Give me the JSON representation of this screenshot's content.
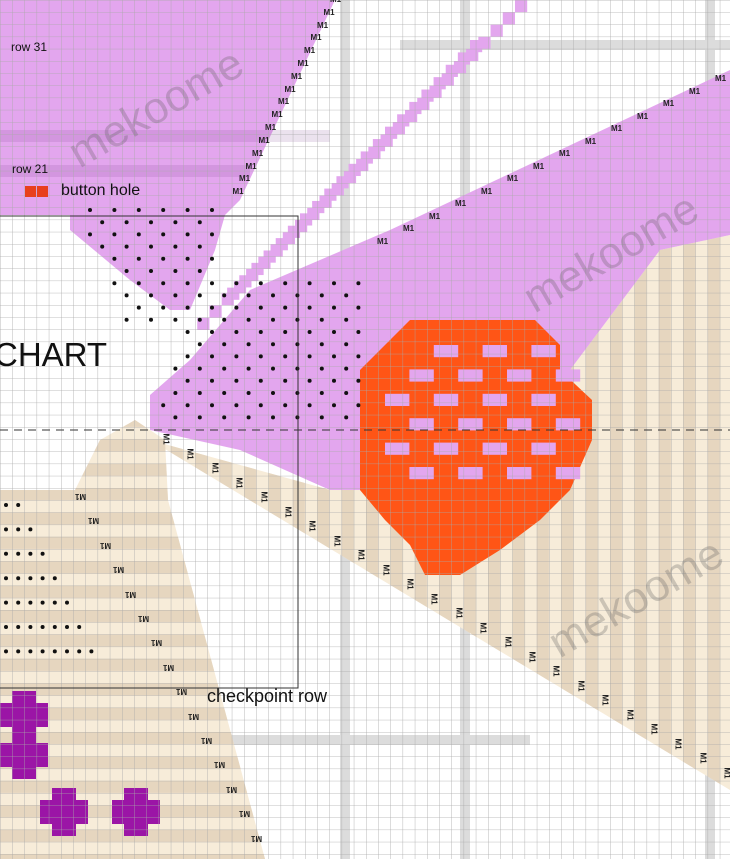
{
  "chart": {
    "title_partial": "CHART",
    "row_labels": [
      "row 31",
      "row 21"
    ],
    "legend": {
      "symbol": "button-hole-symbol",
      "label": "button hole"
    },
    "checkpoint_label": "checkpoint row",
    "stitch_label": "M1",
    "watermark": "mekoome"
  },
  "colors": {
    "pink": "#e3a6ee",
    "beige": "#f7ecd9",
    "beige_dark": "#e6d6bf",
    "orange": "#ff5516",
    "purple": "#9b15a6",
    "grid": "#a9a9a9",
    "gray_band": "#dcdcdc",
    "button_hole": "#e8401c"
  }
}
